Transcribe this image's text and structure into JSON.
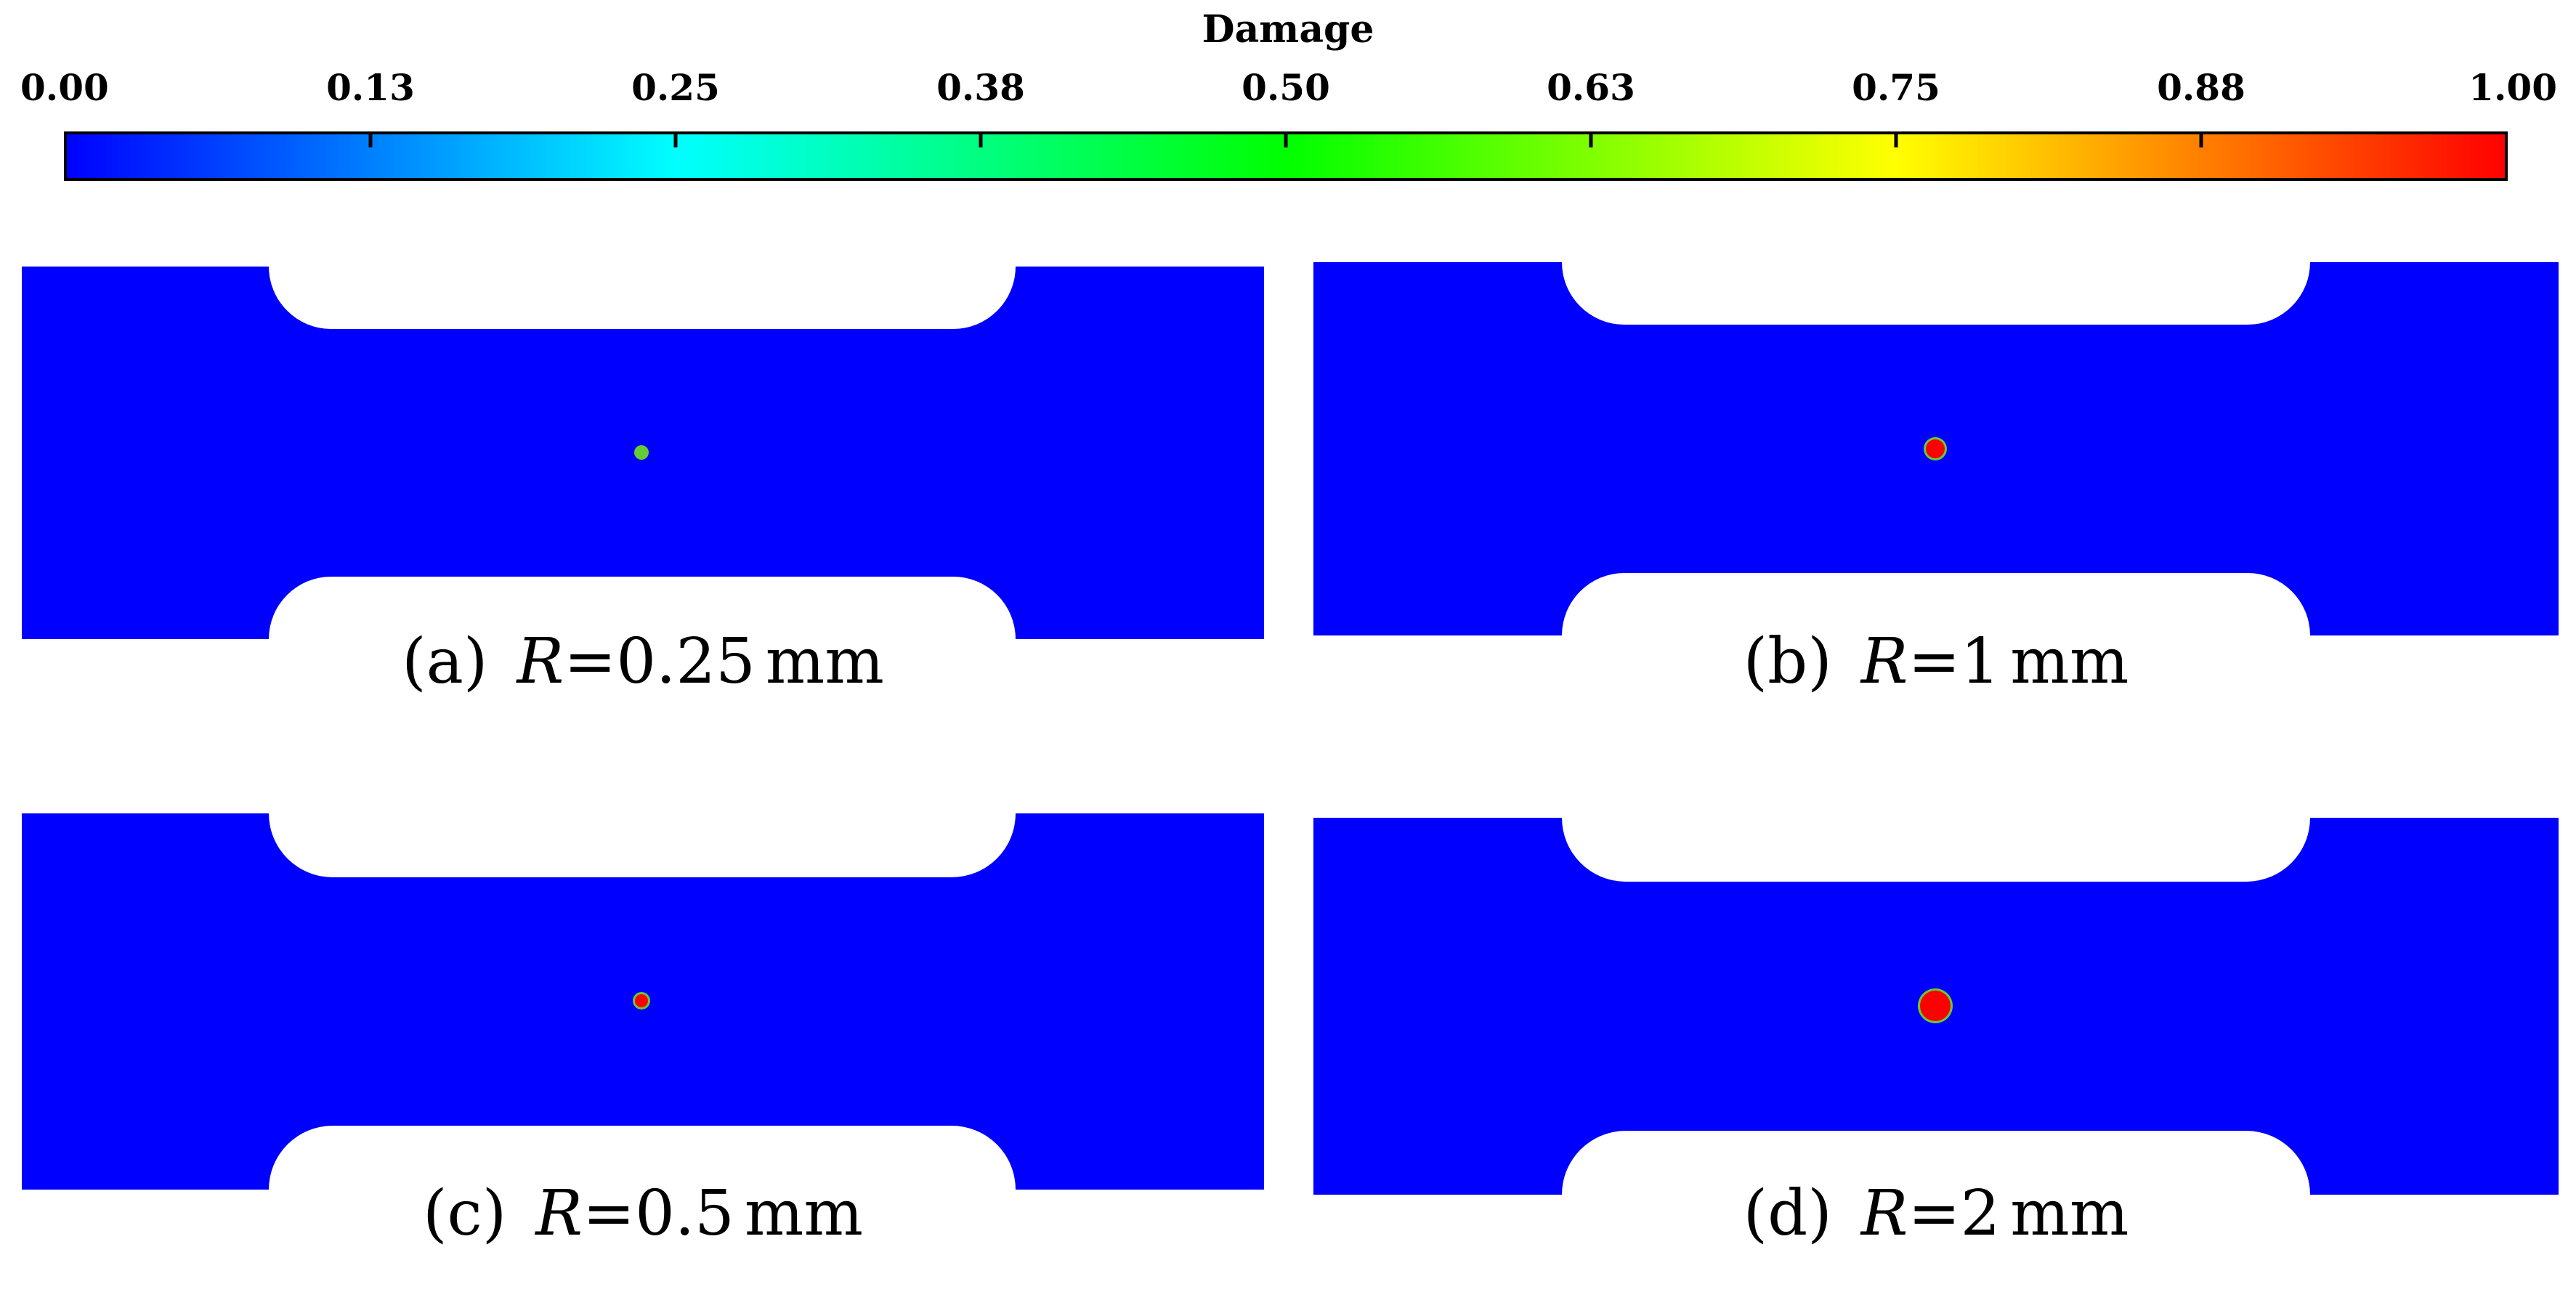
{
  "colorbar": {
    "title": "Damage",
    "ticks": [
      "0.00",
      "0.13",
      "0.25",
      "0.38",
      "0.50",
      "0.63",
      "0.75",
      "0.88",
      "1.00"
    ],
    "range": [
      0,
      1
    ],
    "colors": {
      "low": "#0000ff",
      "quarter": "#00ffff",
      "half": "#00ff00",
      "three_quarter": "#ffff00",
      "high": "#ff0000"
    }
  },
  "specimen_color": "#0000ff",
  "damage_spot_color": "#ff0000",
  "damage_ring_color": "#66cc33",
  "panels": [
    {
      "label": "(a)",
      "variable": "R",
      "equals": "=",
      "value": "0.25",
      "unit": "mm"
    },
    {
      "label": "(b)",
      "variable": "R",
      "equals": "=",
      "value": "1",
      "unit": "mm"
    },
    {
      "label": "(c)",
      "variable": "R",
      "equals": "=",
      "value": "0.5",
      "unit": "mm"
    },
    {
      "label": "(d)",
      "variable": "R",
      "equals": "=",
      "value": "2",
      "unit": "mm"
    }
  ],
  "defect_radius_mm": [
    0.25,
    1,
    0.5,
    2
  ]
}
